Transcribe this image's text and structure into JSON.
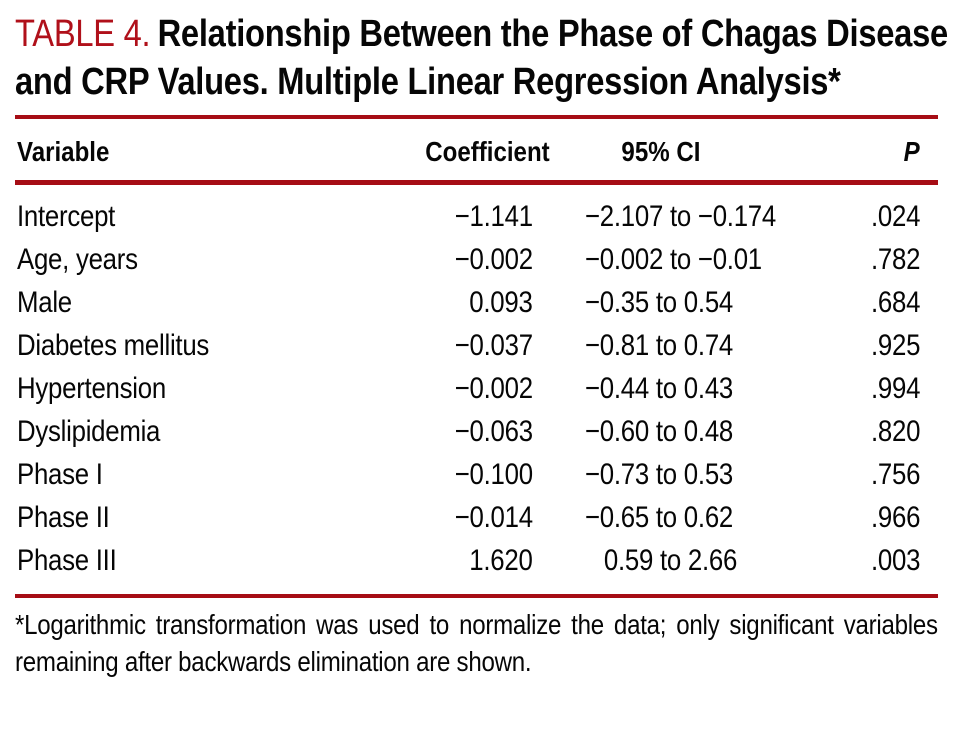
{
  "title": {
    "label": "TABLE 4.",
    "text": "Relationship Between the Phase of Chagas Disease and CRP Values. Multiple Linear Regression Analysis*"
  },
  "colors": {
    "label_red": "#B0101A",
    "rule_red": "#A60D15",
    "text_black": "#060606"
  },
  "table": {
    "columns": [
      "Variable",
      "Coefficient",
      "95% CI",
      "P"
    ],
    "rows": [
      {
        "variable": "Intercept",
        "coefficient": "−1.141",
        "ci": "−2.107 to −0.174",
        "p": ".024"
      },
      {
        "variable": "Age, years",
        "coefficient": "−0.002",
        "ci": "−0.002 to −0.01",
        "p": ".782"
      },
      {
        "variable": "Male",
        "coefficient": "0.093",
        "ci": "−0.35 to 0.54",
        "p": ".684"
      },
      {
        "variable": "Diabetes mellitus",
        "coefficient": "−0.037",
        "ci": "−0.81 to 0.74",
        "p": ".925"
      },
      {
        "variable": "Hypertension",
        "coefficient": "−0.002",
        "ci": "−0.44 to 0.43",
        "p": ".994"
      },
      {
        "variable": "Dyslipidemia",
        "coefficient": "−0.063",
        "ci": "−0.60 to 0.48",
        "p": ".820"
      },
      {
        "variable": "Phase I",
        "coefficient": "−0.100",
        "ci": "−0.73 to 0.53",
        "p": ".756"
      },
      {
        "variable": "Phase II",
        "coefficient": "−0.014",
        "ci": "−0.65 to 0.62",
        "p": ".966"
      },
      {
        "variable": "Phase III",
        "coefficient": "1.620",
        "ci": "0.59 to 2.66",
        "p": ".003"
      }
    ]
  },
  "footnote": "*Logarithmic transformation was used to normalize the data; only significant variables remaining after backwards elimination are shown."
}
